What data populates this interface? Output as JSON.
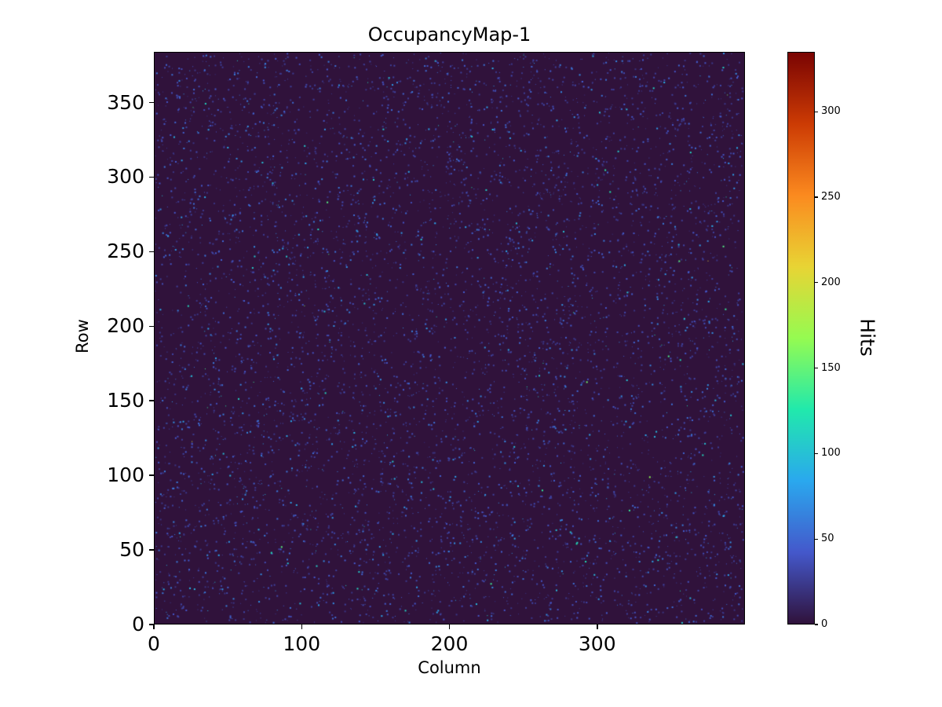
{
  "figure": {
    "background_color": "#ffffff"
  },
  "chart_data": {
    "type": "heatmap",
    "title": "OccupancyMap-1",
    "xlabel": "Column",
    "ylabel": "Row",
    "colorbar_label": "Hits",
    "x_range": [
      0,
      400
    ],
    "y_range": [
      0,
      384
    ],
    "n_cols": 400,
    "n_rows": 384,
    "x_ticks": [
      0,
      100,
      200,
      300
    ],
    "y_ticks": [
      0,
      50,
      100,
      150,
      200,
      250,
      300,
      350
    ],
    "colorbar_ticks": [
      0,
      50,
      100,
      150,
      200,
      250,
      300
    ],
    "vmin": 0,
    "vmax": 335,
    "grid": false,
    "legend": "none",
    "colormap": "turbo",
    "colormap_stops": [
      {
        "t": 0.0,
        "color": "#30123b"
      },
      {
        "t": 0.125,
        "color": "#4458cb"
      },
      {
        "t": 0.25,
        "color": "#2aa8ee"
      },
      {
        "t": 0.375,
        "color": "#21e9ac"
      },
      {
        "t": 0.5,
        "color": "#95fb51"
      },
      {
        "t": 0.625,
        "color": "#e8d434"
      },
      {
        "t": 0.75,
        "color": "#fb8a1f"
      },
      {
        "t": 0.875,
        "color": "#cc3b04"
      },
      {
        "t": 1.0,
        "color": "#7a0403"
      }
    ],
    "background_value": 0,
    "data_summary": {
      "pattern": "sparse-uniform-random-hits",
      "n_hits": 7000,
      "min_hit": 20,
      "typical_hit_range": [
        20,
        80
      ],
      "value_distribution": "exponential-tail",
      "exp_mean": 18,
      "max_hit": 335,
      "seed": 42
    }
  }
}
